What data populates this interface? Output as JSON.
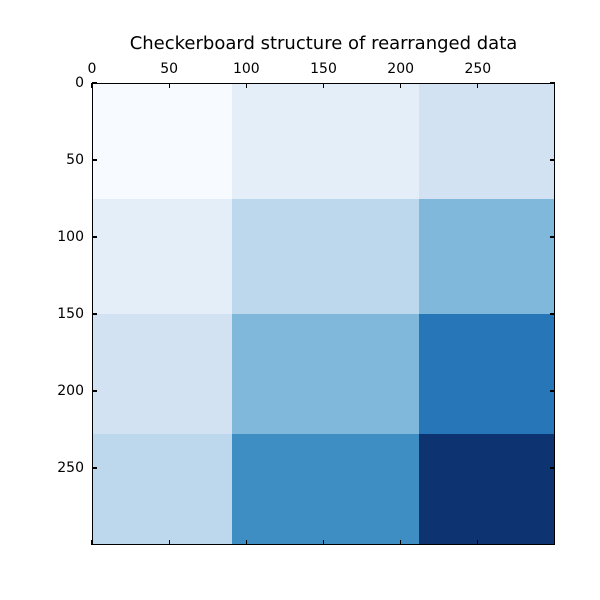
{
  "figure": {
    "background": "#ffffff",
    "axis_color": "#000000",
    "title_color": "#000000"
  },
  "chart_data": {
    "type": "heatmap",
    "title": "Checkerboard structure of rearranged data",
    "colormap": "Blues",
    "vmin": 1,
    "vmax": 12,
    "x_range": [
      0,
      300
    ],
    "y_range": [
      0,
      300
    ],
    "x_axis_position": "top",
    "y_axis_direction": "downward",
    "tick_direction": "in",
    "grid": false,
    "legend_position": "none",
    "x_ticks": [
      0,
      50,
      100,
      150,
      200,
      250
    ],
    "y_ticks": [
      0,
      50,
      100,
      150,
      200,
      250
    ],
    "col_boundaries": [
      0,
      91,
      212,
      300
    ],
    "row_boundaries": [
      0,
      75,
      150,
      228,
      300
    ],
    "values": [
      [
        1,
        2,
        3
      ],
      [
        2,
        4,
        6
      ],
      [
        3,
        6,
        9
      ],
      [
        4,
        8,
        12
      ]
    ],
    "cell_colors": [
      [
        "#f7faff",
        "#e3eef9",
        "#d3e2f2"
      ],
      [
        "#e3eef9",
        "#bdd7ec",
        "#7fb8db"
      ],
      [
        "#d3e2f2",
        "#7fb8db",
        "#2776b8"
      ],
      [
        "#bdd7ec",
        "#3e8ec4",
        "#0d3471"
      ]
    ]
  }
}
